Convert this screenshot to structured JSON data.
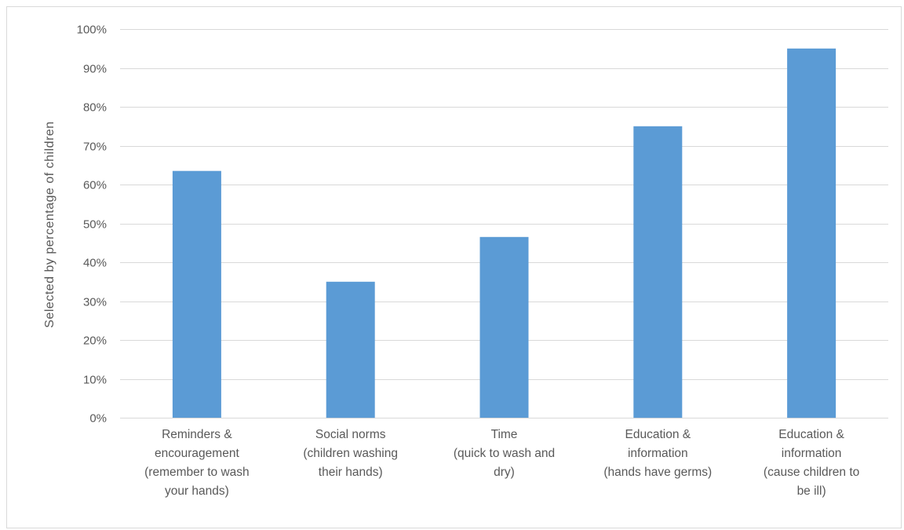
{
  "chart_data": {
    "type": "bar",
    "title": "",
    "xlabel": "",
    "ylabel": "Selected by percentage of children",
    "ylim": [
      0,
      100
    ],
    "y_ticks": [
      "0%",
      "10%",
      "20%",
      "30%",
      "40%",
      "50%",
      "60%",
      "70%",
      "80%",
      "90%",
      "100%"
    ],
    "categories": [
      [
        "Reminders &",
        "encouragement",
        "(remember to wash",
        "your hands)"
      ],
      [
        "Social norms",
        "(children washing",
        "their hands)"
      ],
      [
        "Time",
        "(quick to wash and",
        "dry)"
      ],
      [
        "Education &",
        "information",
        "(hands have germs)"
      ],
      [
        "Education &",
        "information",
        "(cause children to",
        "be ill)"
      ]
    ],
    "values": [
      63.5,
      35,
      46.5,
      75,
      95
    ],
    "grid": true,
    "legend": "none",
    "bar_color": "#5b9bd5"
  }
}
